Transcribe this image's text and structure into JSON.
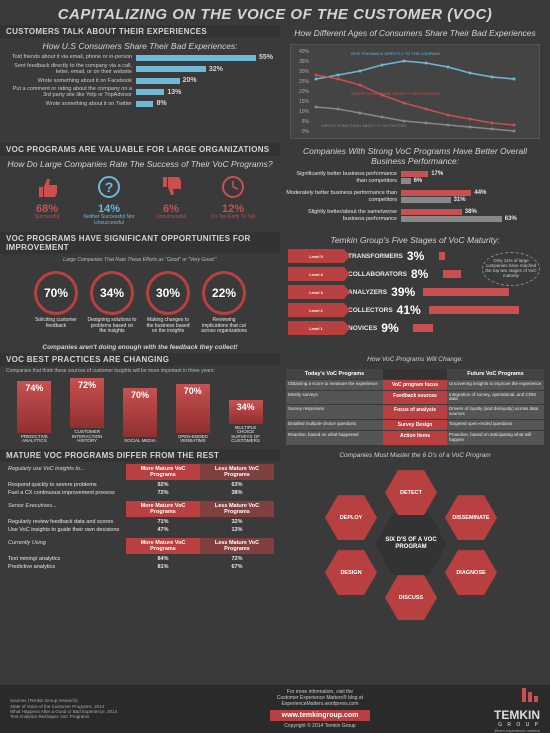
{
  "title": "CAPITALIZING ON THE VOICE OF THE CUSTOMER (VOC)",
  "s1": {
    "head": "CUSTOMERS TALK ABOUT THEIR EXPERIENCES",
    "sub": "How U.S Consumers Share Their Bad Experiences:",
    "rows": [
      {
        "label": "Told friends about it via email, phone or in-person",
        "pct": 55
      },
      {
        "label": "Sent feedback directly to the company via a call, letter, email, or on their website",
        "pct": 32
      },
      {
        "label": "Wrote something about it on Facebook",
        "pct": 20
      },
      {
        "label": "Put a comment or rating about the company on a 3rd party site like Yelp or TripAdvisor",
        "pct": 13
      },
      {
        "label": "Wrote something about it on Twitter",
        "pct": 8
      }
    ],
    "bar_color": "#6fb8d6",
    "max_w": 120
  },
  "s1r": {
    "sub": "How Different Ages of Consumers Share Their Bad Experiences",
    "ylabels": [
      "40%",
      "35%",
      "30%",
      "25%",
      "20%",
      "15%",
      "10%",
      "6%",
      "0%"
    ],
    "legend": [
      "GIVE FEEDBACK DIRECTLY TO THE COMPANY",
      "WROTE SOMETHING ABOUT IT ON FACEBOOK",
      "WROTE SOMETHING ABOUT IT ON TWITTER"
    ],
    "series": {
      "direct": {
        "color": "#6fb8d6",
        "pts": [
          28,
          30,
          32,
          35,
          37,
          36,
          34,
          31,
          29,
          28
        ]
      },
      "fb": {
        "color": "#c85050",
        "pts": [
          30,
          28,
          25,
          20,
          16,
          13,
          10,
          8,
          6,
          5
        ]
      },
      "tw": {
        "color": "#888",
        "pts": [
          14,
          13,
          11,
          9,
          7,
          6,
          5,
          4,
          3,
          2
        ]
      }
    },
    "xlabels": [
      "18 to 24",
      "25 to 34",
      "35 to 44",
      "",
      "",
      "",
      "",
      "65 to 74",
      "75 or older"
    ]
  },
  "s2": {
    "head": "VOC PROGRAMS ARE VALUABLE FOR LARGE ORGANIZATIONS",
    "sub": "How Do Large Companies Rate The Success of Their VoC Programs?",
    "thumbs": [
      {
        "pct": "68%",
        "label": "Successful",
        "up": true,
        "color": "#c85050"
      },
      {
        "pct": "14%",
        "label": "Neither Successful Nor Unsuccessful",
        "q": true,
        "color": "#6fb8d6"
      },
      {
        "pct": "6%",
        "label": "Unsuccessful",
        "down": true,
        "color": "#c85050"
      },
      {
        "pct": "12%",
        "label": "It's Too Early To Tell",
        "clock": true,
        "color": "#c85050"
      }
    ]
  },
  "s2r": {
    "sub": "Companies With Strong VoC Programs Have Better Overall Business Performance:",
    "legend": {
      "a": "STRONGER VOC PROGRAMS",
      "b": "WEAKER VOC PROGRAMS"
    },
    "rows": [
      {
        "label": "Significantly better business performance than competitors",
        "a": 17,
        "b": 6
      },
      {
        "label": "Moderately better business performance than competitors",
        "a": 44,
        "b": 31
      },
      {
        "label": "Slightly better/about the same/worse business performance",
        "a": 38,
        "b": 63
      }
    ],
    "color_a": "#c85050",
    "color_b": "#888"
  },
  "s3": {
    "head": "VOC PROGRAMS HAVE SIGNIFICANT OPPORTUNITIES FOR IMPROVEMENT",
    "sub": "Large Companies That Rate These Efforts as \"Good\" or \"Very Good:\"",
    "circles": [
      {
        "pct": "70%",
        "label": "Soliciting customer feedback"
      },
      {
        "pct": "34%",
        "label": "Designing solutions to problems based on the insights"
      },
      {
        "pct": "30%",
        "label": "Making changes to the business based on the insights"
      },
      {
        "pct": "22%",
        "label": "Reviewing implications that cut across organizations"
      }
    ],
    "note": "Companies aren't doing enough with the feedback they collect!"
  },
  "s3r": {
    "sub": "Temkin Group's Five Stages of VoC Maturity:",
    "callout": "Only 11% of large companies have reached the top two stages of VoC maturity",
    "stages": [
      {
        "lvl": "Level 5",
        "name": "TRANSFORMERS",
        "pct": 3
      },
      {
        "lvl": "Level 4",
        "name": "COLLABORATORS",
        "pct": 8
      },
      {
        "lvl": "Level 3",
        "name": "ANALYZERS",
        "pct": 39
      },
      {
        "lvl": "Level 2",
        "name": "COLLECTORS",
        "pct": 41
      },
      {
        "lvl": "Level 1",
        "name": "NOVICES",
        "pct": 9
      }
    ]
  },
  "s4": {
    "head": "VOC BEST PRACTICES ARE CHANGING",
    "sub": "Companies that think these sources of customer insights will be more important in three years:",
    "bars": [
      {
        "pct": 74,
        "label": "PREDICTIVE ANALYTICS"
      },
      {
        "pct": 72,
        "label": "CUSTOMER INTERACTION HISTORY"
      },
      {
        "pct": 70,
        "label": "SOCIAL MEDIA"
      },
      {
        "pct": 70,
        "label": "OPEN-ENDED VERBATIMS"
      },
      {
        "pct": 34,
        "label": "MULTIPLE CHOICE SURVEYS OF CUSTOMERS"
      }
    ]
  },
  "s4r": {
    "sub": "How VoC Programs Will Change:",
    "hdr_l": "Today's VoC Programs",
    "hdr_m": "",
    "hdr_r": "Future VoC Programs",
    "rows": [
      {
        "l": "Obtaining a score to measure the experience",
        "m": "VoC program focus",
        "r": "Uncovering insights to improve the experience"
      },
      {
        "l": "Mostly surveys",
        "m": "Feedback sources",
        "r": "Integration of survey, operational, and CRM data"
      },
      {
        "l": "Survey responses",
        "m": "Focus of analysis",
        "r": "Drivers of loyalty (and disloyalty) across data sources"
      },
      {
        "l": "Detailed multiple-choice questions",
        "m": "Survey Design",
        "r": "Targeted open-ended questions"
      },
      {
        "l": "Reactive, based on what happened",
        "m": "Action Items",
        "r": "Proactive, based on anticipating what will happen"
      }
    ]
  },
  "s5": {
    "head": "MATURE VOC PROGRAMS DIFFER FROM THE REST",
    "groups": [
      {
        "label": "Regularly use VoC insights to...",
        "h1": "More Mature VoC Programs",
        "h2": "Less Mature VoC Programs",
        "rows": [
          {
            "l": "Respond quickly to severe problems",
            "a": "92%",
            "b": "63%"
          },
          {
            "l": "Fuel a CX continuous improvement process",
            "a": "72%",
            "b": "38%"
          }
        ]
      },
      {
        "label": "Senior Executives...",
        "h1": "More Mature VoC Programs",
        "h2": "Less Mature VoC Programs",
        "rows": [
          {
            "l": "Regularly review feedback data and scores",
            "a": "71%",
            "b": "32%"
          },
          {
            "l": "Use VoC insights to guide their own decisions",
            "a": "47%",
            "b": "13%"
          }
        ]
      },
      {
        "label": "Currently Using",
        "h1": "More Mature VoC Programs",
        "h2": "Less Mature VoC Programs",
        "rows": [
          {
            "l": "Text mining/ analytics",
            "a": "84%",
            "b": "72%"
          },
          {
            "l": "Predictive analytics",
            "a": "81%",
            "b": "67%"
          }
        ]
      }
    ]
  },
  "s5r": {
    "sub": "Companies Must Master the 6 D's of a VoC Program",
    "center": "SIX D'S OF A VOC PROGRAM",
    "hex": [
      "DETECT",
      "DISSEMINATE",
      "DIAGNOSE",
      "DISCUSS",
      "DESIGN",
      "DEPLOY"
    ]
  },
  "footer": {
    "src": "Sources (Temkin Group research):\nState of Voice of the Customer Programs, 2014\nWhat Happens After a Good or Bad Experience, 2014\nText Analytics Reshapes VoC Programs",
    "info": "For more information, visit the\nCustomer Experience Matters® blog at\nExperienceMatters.wordpress.com",
    "url": "www.temkingroup.com",
    "copy": "Copyright © 2014 Temkin Group",
    "brand": "TEMKIN",
    "brand_sub": "G R O U P",
    "tag": "When experience matters"
  }
}
